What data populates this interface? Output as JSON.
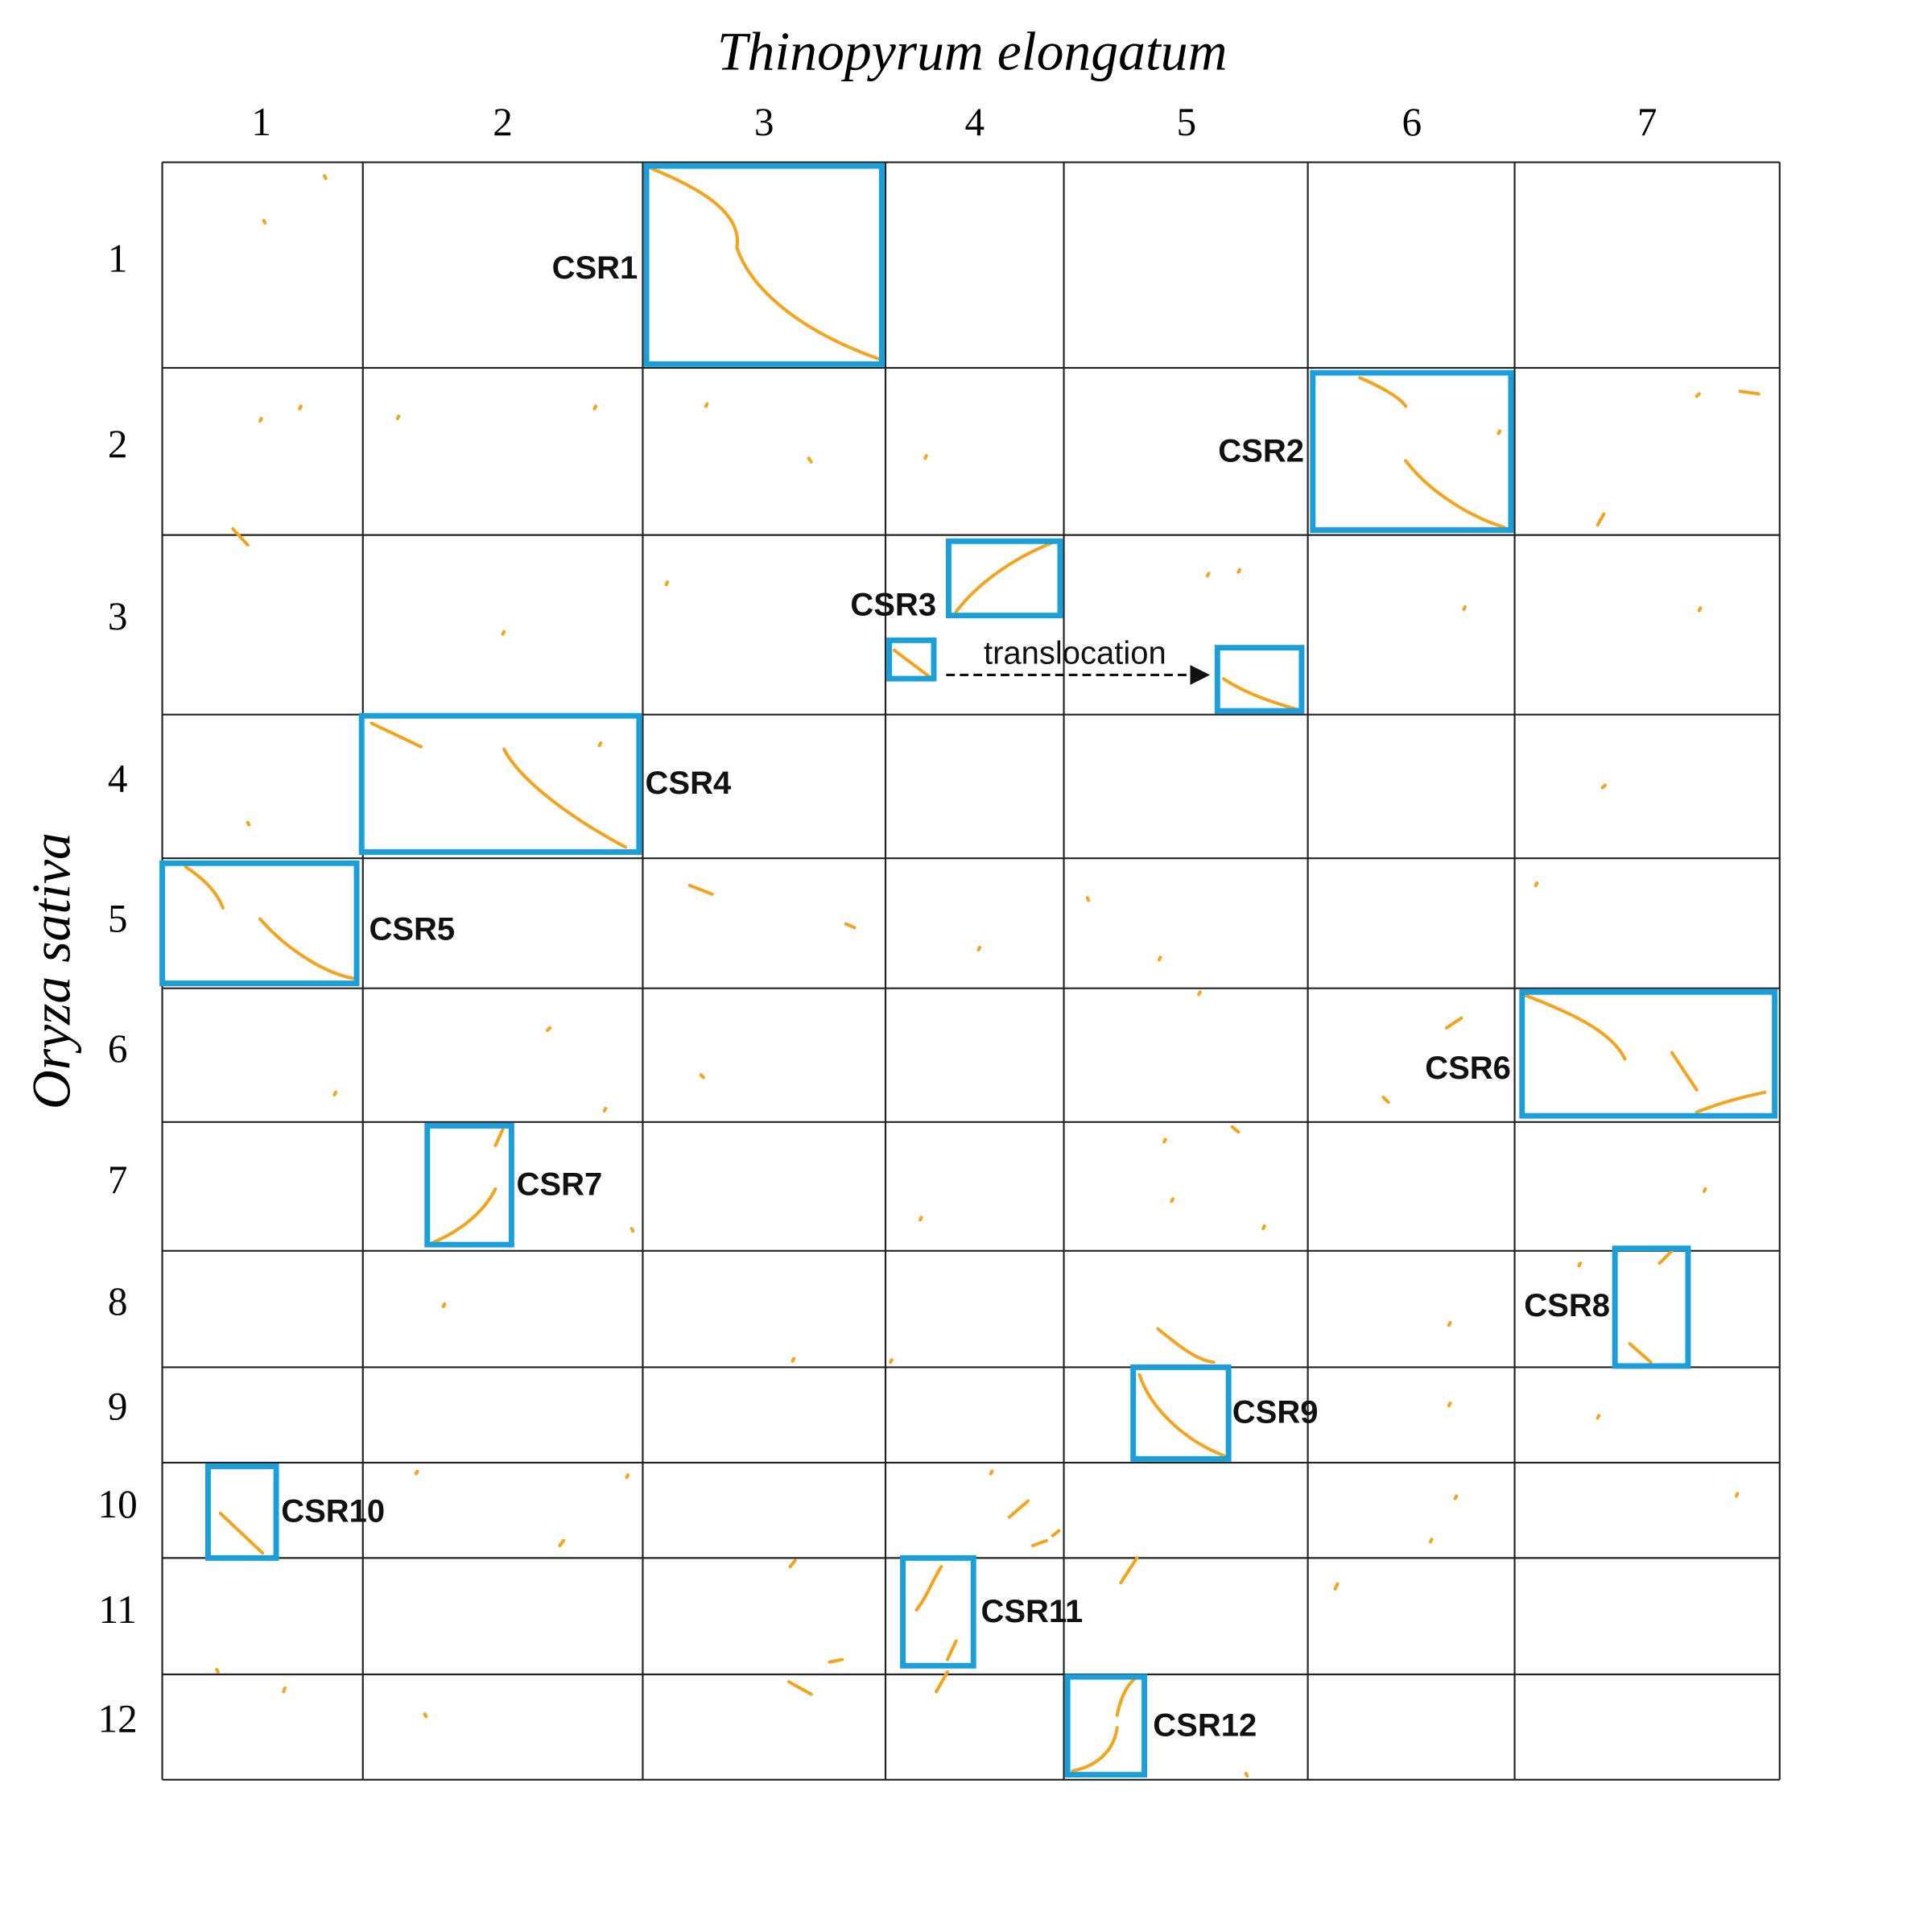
{
  "title": "Thinopyrum elongatum",
  "y_label": "Oryza sativa",
  "columns": [
    "1",
    "2",
    "3",
    "4",
    "5",
    "6",
    "7"
  ],
  "rows": [
    "1",
    "2",
    "3",
    "4",
    "5",
    "6",
    "7",
    "8",
    "9",
    "10",
    "11",
    "12"
  ],
  "regions": [
    "CSR1",
    "CSR2",
    "CSR3",
    "CSR4",
    "CSR5",
    "CSR6",
    "CSR7",
    "CSR8",
    "CSR9",
    "CSR10",
    "CSR11",
    "CSR12"
  ],
  "annotation": "translocation"
}
